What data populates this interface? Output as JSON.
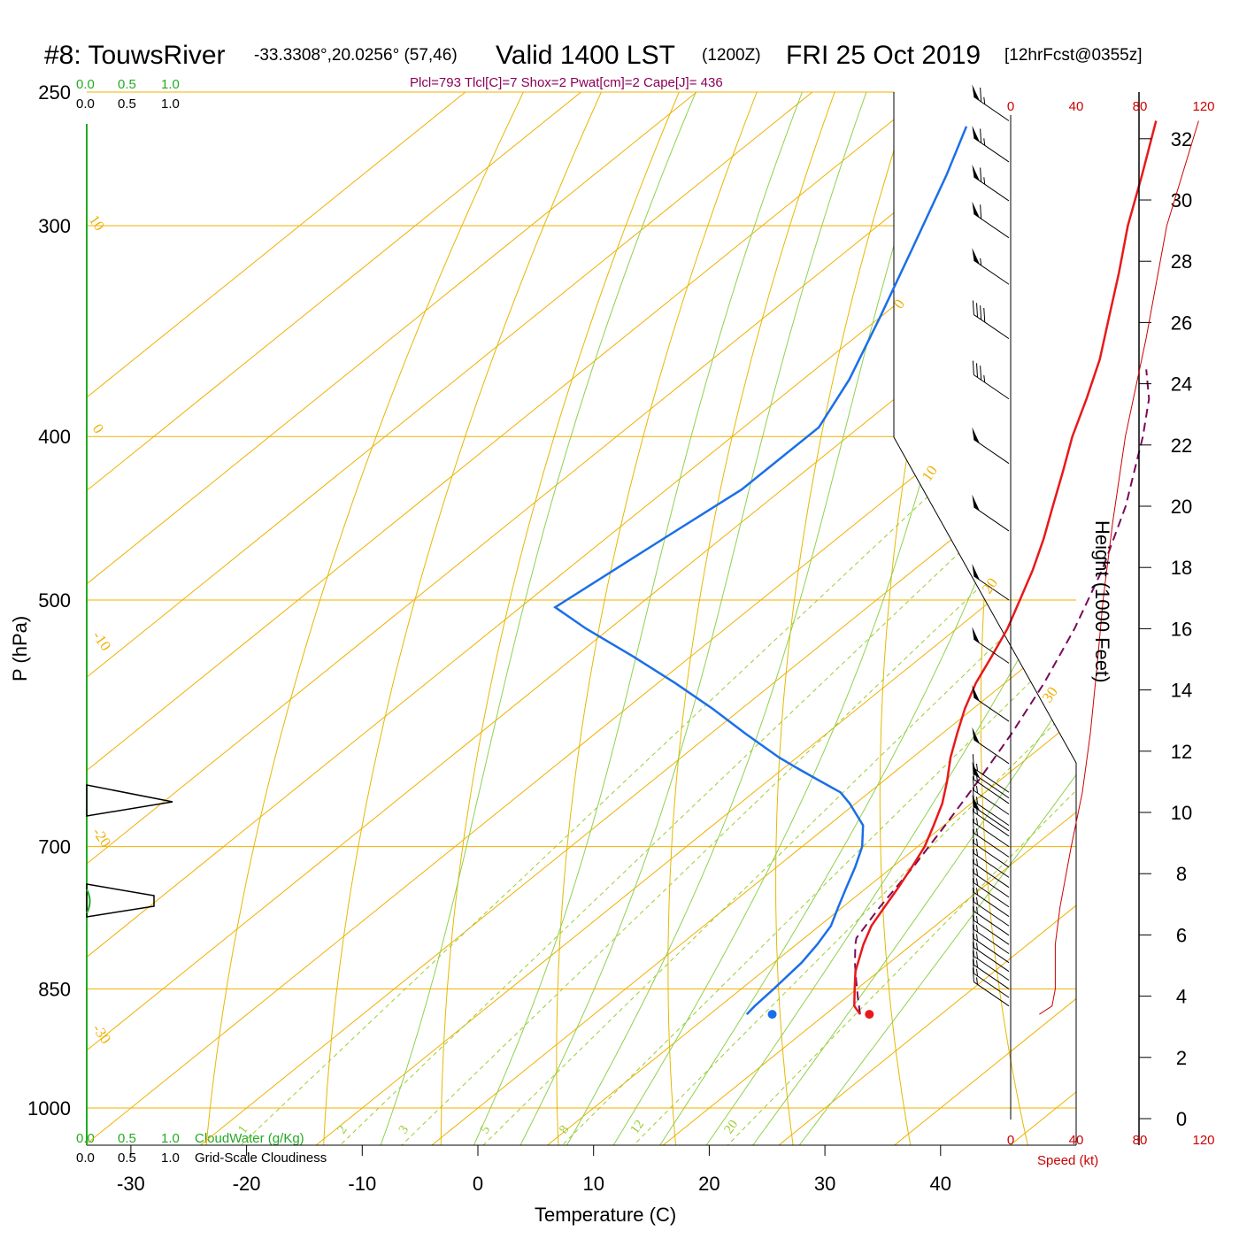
{
  "header": {
    "station": "#8: TouwsRiver",
    "coords": "-33.3308°,20.0256° (57,46)",
    "valid": "Valid 1400 LST",
    "utc": "(1200Z)",
    "date": "FRI 25 Oct 2019",
    "forecast": "[12hrFcst@0355z]",
    "indices": "Plcl=793 Tlcl[C]=7 Shox=2 Pwat[cm]=2 Cape[J]= 436"
  },
  "colors": {
    "temperature": "#e8191b",
    "dewpoint": "#1a6fe8",
    "parcel": "#7a0a5a",
    "isotherm": "#f0b000",
    "dry_adiabat": "#e6b800",
    "moist_adiabat": "#8fd14f",
    "mixing_ratio": "#9acd32",
    "cloud_water": "#22aa22",
    "speed": "#cc0000"
  },
  "chart_data": {
    "type": "skew-t",
    "xlabel": "Temperature (C)",
    "ylabel": "P (hPa)",
    "right_label": "Height (1000 Feet)",
    "x_ticks": [
      -30,
      -20,
      -10,
      0,
      10,
      20,
      30,
      40
    ],
    "p_ticks": [
      250,
      300,
      400,
      500,
      700,
      850,
      1000
    ],
    "height_ticks": [
      0,
      2,
      4,
      6,
      8,
      10,
      12,
      14,
      16,
      18,
      20,
      22,
      24,
      26,
      28,
      30,
      32
    ],
    "isotherm_labels": [
      "10",
      "0",
      "-10",
      "-20",
      "-30",
      "0",
      "10",
      "20",
      "30"
    ],
    "mixing_ratio_labels": [
      "1",
      "2",
      "3",
      "5",
      "8",
      "12",
      "20"
    ],
    "cloud_top_scale": [
      "0.0",
      "0.5",
      "1.0"
    ],
    "cloud_bottom_scale": [
      "0.0",
      "0.5",
      "1.0"
    ],
    "cloud_bottom_green_label": "CloudWater (g/Kg)",
    "cloud_bottom_black_label": "Grid-Scale Cloudiness",
    "speed_ticks": [
      "0",
      "40",
      "80",
      "120"
    ],
    "speed_label": "Speed (kt)",
    "temperature": [
      {
        "p": 880,
        "t": 23.0
      },
      {
        "p": 870,
        "t": 21.6
      },
      {
        "p": 850,
        "t": 19.8
      },
      {
        "p": 830,
        "t": 18.0
      },
      {
        "p": 800,
        "t": 15.8
      },
      {
        "p": 780,
        "t": 14.5
      },
      {
        "p": 760,
        "t": 13.6
      },
      {
        "p": 740,
        "t": 12.7
      },
      {
        "p": 720,
        "t": 11.7
      },
      {
        "p": 700,
        "t": 10.6
      },
      {
        "p": 680,
        "t": 9.1
      },
      {
        "p": 660,
        "t": 7.5
      },
      {
        "p": 640,
        "t": 5.5
      },
      {
        "p": 620,
        "t": 3.3
      },
      {
        "p": 600,
        "t": 1.3
      },
      {
        "p": 580,
        "t": -0.7
      },
      {
        "p": 560,
        "t": -2.5
      },
      {
        "p": 540,
        "t": -4.0
      },
      {
        "p": 520,
        "t": -5.6
      },
      {
        "p": 500,
        "t": -7.6
      },
      {
        "p": 480,
        "t": -9.7
      },
      {
        "p": 460,
        "t": -12.1
      },
      {
        "p": 440,
        "t": -14.8
      },
      {
        "p": 420,
        "t": -17.6
      },
      {
        "p": 400,
        "t": -20.6
      },
      {
        "p": 380,
        "t": -23.4
      },
      {
        "p": 360,
        "t": -26.5
      },
      {
        "p": 340,
        "t": -30.2
      },
      {
        "p": 320,
        "t": -34.1
      },
      {
        "p": 300,
        "t": -38.4
      },
      {
        "p": 280,
        "t": -42.6
      },
      {
        "p": 260,
        "t": -47.2
      }
    ],
    "dewpoint": [
      {
        "p": 880,
        "t": 13.2
      },
      {
        "p": 870,
        "t": 13.0
      },
      {
        "p": 850,
        "t": 12.8
      },
      {
        "p": 820,
        "t": 12.4
      },
      {
        "p": 800,
        "t": 11.8
      },
      {
        "p": 780,
        "t": 11.0
      },
      {
        "p": 760,
        "t": 9.6
      },
      {
        "p": 740,
        "t": 8.2
      },
      {
        "p": 720,
        "t": 6.8
      },
      {
        "p": 700,
        "t": 5.2
      },
      {
        "p": 680,
        "t": 3.0
      },
      {
        "p": 660,
        "t": -0.5
      },
      {
        "p": 650,
        "t": -2.5
      },
      {
        "p": 640,
        "t": -5.5
      },
      {
        "p": 630,
        "t": -8.5
      },
      {
        "p": 620,
        "t": -11.5
      },
      {
        "p": 600,
        "t": -17.0
      },
      {
        "p": 580,
        "t": -22.5
      },
      {
        "p": 560,
        "t": -28.5
      },
      {
        "p": 540,
        "t": -35.0
      },
      {
        "p": 520,
        "t": -42.0
      },
      {
        "p": 505,
        "t": -47.0
      },
      {
        "p": 460,
        "t": -45.0
      },
      {
        "p": 430,
        "t": -43.5
      },
      {
        "p": 395,
        "t": -43.5
      },
      {
        "p": 370,
        "t": -46.0
      },
      {
        "p": 340,
        "t": -50.0
      },
      {
        "p": 310,
        "t": -54.5
      },
      {
        "p": 280,
        "t": -59.5
      },
      {
        "p": 262,
        "t": -63.0
      }
    ],
    "parcel": [
      {
        "p": 880,
        "t": 23.0
      },
      {
        "p": 860,
        "t": 21.0
      },
      {
        "p": 840,
        "t": 19.0
      },
      {
        "p": 820,
        "t": 17.0
      },
      {
        "p": 800,
        "t": 15.1
      },
      {
        "p": 793,
        "t": 14.5
      },
      {
        "p": 760,
        "t": 13.2
      },
      {
        "p": 720,
        "t": 11.8
      },
      {
        "p": 680,
        "t": 10.1
      },
      {
        "p": 640,
        "t": 8.2
      },
      {
        "p": 600,
        "t": 6.0
      },
      {
        "p": 560,
        "t": 3.4
      },
      {
        "p": 520,
        "t": 0.2
      },
      {
        "p": 480,
        "t": -3.7
      },
      {
        "p": 440,
        "t": -8.5
      },
      {
        "p": 400,
        "t": -14.5
      },
      {
        "p": 380,
        "t": -18.0
      },
      {
        "p": 365,
        "t": -21.4
      }
    ],
    "surface_temperature": 23.8,
    "surface_dewpoint": 15.4,
    "surface_pressure": 880,
    "wind_barbs": [
      {
        "p": 260,
        "kt": 65
      },
      {
        "p": 275,
        "kt": 65
      },
      {
        "p": 290,
        "kt": 65
      },
      {
        "p": 305,
        "kt": 60
      },
      {
        "p": 325,
        "kt": 55
      },
      {
        "p": 350,
        "kt": 40
      },
      {
        "p": 380,
        "kt": 35
      },
      {
        "p": 415,
        "kt": 50
      },
      {
        "p": 455,
        "kt": 50
      },
      {
        "p": 500,
        "kt": 50
      },
      {
        "p": 545,
        "kt": 50
      },
      {
        "p": 590,
        "kt": 50
      },
      {
        "p": 625,
        "kt": 50
      },
      {
        "p": 655,
        "kt": 50
      },
      {
        "p": 685,
        "kt": 50
      },
      {
        "p": 650,
        "kt": 15
      },
      {
        "p": 660,
        "kt": 15
      },
      {
        "p": 670,
        "kt": 15
      },
      {
        "p": 680,
        "kt": 15
      },
      {
        "p": 690,
        "kt": 15
      },
      {
        "p": 700,
        "kt": 15
      },
      {
        "p": 710,
        "kt": 15
      },
      {
        "p": 720,
        "kt": 15
      },
      {
        "p": 730,
        "kt": 15
      },
      {
        "p": 740,
        "kt": 15
      },
      {
        "p": 750,
        "kt": 15
      },
      {
        "p": 760,
        "kt": 15
      },
      {
        "p": 770,
        "kt": 15
      },
      {
        "p": 780,
        "kt": 15
      },
      {
        "p": 790,
        "kt": 15
      },
      {
        "p": 800,
        "kt": 15
      },
      {
        "p": 810,
        "kt": 15
      },
      {
        "p": 820,
        "kt": 15
      },
      {
        "p": 830,
        "kt": 15
      },
      {
        "p": 840,
        "kt": 15
      },
      {
        "p": 850,
        "kt": 15
      },
      {
        "p": 860,
        "kt": 15
      },
      {
        "p": 870,
        "kt": 15
      }
    ],
    "speed_profile": [
      {
        "p": 880,
        "kt": 18
      },
      {
        "p": 870,
        "kt": 26
      },
      {
        "p": 850,
        "kt": 28
      },
      {
        "p": 800,
        "kt": 28
      },
      {
        "p": 760,
        "kt": 31
      },
      {
        "p": 700,
        "kt": 38
      },
      {
        "p": 650,
        "kt": 45
      },
      {
        "p": 600,
        "kt": 50
      },
      {
        "p": 550,
        "kt": 54
      },
      {
        "p": 500,
        "kt": 58
      },
      {
        "p": 450,
        "kt": 64
      },
      {
        "p": 400,
        "kt": 72
      },
      {
        "p": 350,
        "kt": 85
      },
      {
        "p": 300,
        "kt": 98
      },
      {
        "p": 260,
        "kt": 118
      }
    ]
  }
}
